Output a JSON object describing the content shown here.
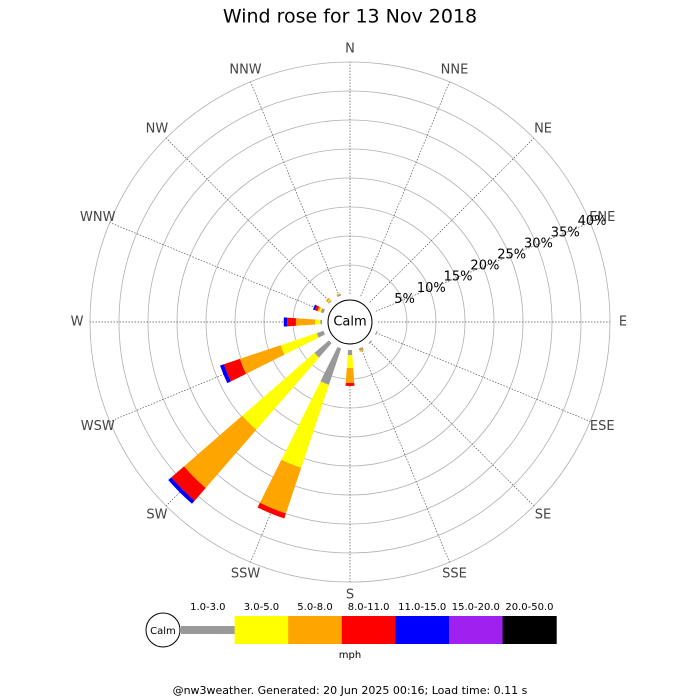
{
  "chart_data": {
    "type": "windrose",
    "title": "Wind rose for 13 Nov 2018",
    "directions": [
      "N",
      "NNE",
      "NE",
      "ENE",
      "E",
      "ESE",
      "SE",
      "SSE",
      "S",
      "SSW",
      "SW",
      "WSW",
      "W",
      "WNW",
      "NW",
      "NNW"
    ],
    "calm_label": "Calm",
    "unit": "mph",
    "rlim": [
      0,
      40
    ],
    "rticks": [
      {
        "value": 5,
        "label": "5%"
      },
      {
        "value": 10,
        "label": "10%"
      },
      {
        "value": 15,
        "label": "15%"
      },
      {
        "value": 20,
        "label": "20%"
      },
      {
        "value": 25,
        "label": "25%"
      },
      {
        "value": 30,
        "label": "30%"
      },
      {
        "value": 35,
        "label": "35%"
      },
      {
        "value": 40,
        "label": "40%"
      }
    ],
    "series": [
      {
        "name": "1.0-3.0",
        "color": "#999999",
        "values": [
          0,
          0,
          0,
          0,
          0,
          0.2,
          0.2,
          0.3,
          0.9,
          6.6,
          3.3,
          1.2,
          0.3,
          0.5,
          0.2,
          0.2
        ]
      },
      {
        "name": "3.0-5.0",
        "color": "#ffff00",
        "values": [
          0,
          0,
          0,
          0,
          0,
          0,
          0,
          0,
          2.2,
          15.1,
          16.5,
          6.6,
          0.9,
          0.3,
          0.2,
          0
        ]
      },
      {
        "name": "5.0-8.0",
        "color": "#ffa500",
        "values": [
          0,
          0,
          0,
          0,
          0,
          0,
          0,
          0.3,
          2.6,
          8.3,
          13.3,
          7.4,
          3.3,
          0.3,
          0.3,
          0.2
        ]
      },
      {
        "name": "8.0-11.0",
        "color": "#ff0000",
        "values": [
          0,
          0,
          0,
          0,
          0,
          0,
          0,
          0,
          0.5,
          0.9,
          2.9,
          2.9,
          1.5,
          0.5,
          0,
          0
        ]
      },
      {
        "name": "11.0-15.0",
        "color": "#0000ff",
        "values": [
          0,
          0,
          0,
          0,
          0,
          0,
          0,
          0,
          0,
          0,
          0.7,
          0.7,
          0.6,
          0.3,
          0,
          0
        ]
      },
      {
        "name": "15.0-20.0",
        "color": "#a020f0",
        "values": [
          0,
          0,
          0,
          0,
          0,
          0,
          0,
          0,
          0,
          0,
          0,
          0,
          0,
          0,
          0,
          0
        ]
      },
      {
        "name": "20.0-50.0",
        "color": "#000000",
        "values": [
          0,
          0,
          0,
          0,
          0,
          0,
          0,
          0,
          0,
          0,
          0,
          0,
          0,
          0,
          0,
          0
        ]
      }
    ]
  },
  "footer": "@nw3weather. Generated: 20 Jun 2025 00:16; Load time: 0.11 s"
}
